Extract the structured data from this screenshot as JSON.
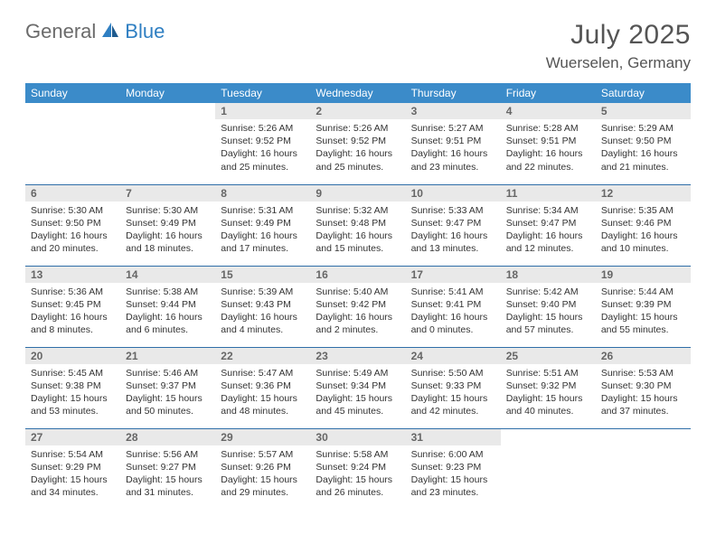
{
  "brand": {
    "part1": "General",
    "part2": "Blue"
  },
  "title": {
    "month": "July 2025",
    "location": "Wuerselen, Germany"
  },
  "colors": {
    "header_bg": "#3b8bc9",
    "header_text": "#ffffff",
    "row_sep": "#2f6ea8",
    "daynum_bg": "#e9e9e9",
    "daynum_text": "#666666",
    "body_text": "#333333",
    "brand_gray": "#6b6b6b",
    "brand_blue": "#2f7fc2"
  },
  "weekdays": [
    "Sunday",
    "Monday",
    "Tuesday",
    "Wednesday",
    "Thursday",
    "Friday",
    "Saturday"
  ],
  "weeks": [
    [
      null,
      null,
      {
        "n": "1",
        "sr": "5:26 AM",
        "ss": "9:52 PM",
        "dl": "16 hours and 25 minutes."
      },
      {
        "n": "2",
        "sr": "5:26 AM",
        "ss": "9:52 PM",
        "dl": "16 hours and 25 minutes."
      },
      {
        "n": "3",
        "sr": "5:27 AM",
        "ss": "9:51 PM",
        "dl": "16 hours and 23 minutes."
      },
      {
        "n": "4",
        "sr": "5:28 AM",
        "ss": "9:51 PM",
        "dl": "16 hours and 22 minutes."
      },
      {
        "n": "5",
        "sr": "5:29 AM",
        "ss": "9:50 PM",
        "dl": "16 hours and 21 minutes."
      }
    ],
    [
      {
        "n": "6",
        "sr": "5:30 AM",
        "ss": "9:50 PM",
        "dl": "16 hours and 20 minutes."
      },
      {
        "n": "7",
        "sr": "5:30 AM",
        "ss": "9:49 PM",
        "dl": "16 hours and 18 minutes."
      },
      {
        "n": "8",
        "sr": "5:31 AM",
        "ss": "9:49 PM",
        "dl": "16 hours and 17 minutes."
      },
      {
        "n": "9",
        "sr": "5:32 AM",
        "ss": "9:48 PM",
        "dl": "16 hours and 15 minutes."
      },
      {
        "n": "10",
        "sr": "5:33 AM",
        "ss": "9:47 PM",
        "dl": "16 hours and 13 minutes."
      },
      {
        "n": "11",
        "sr": "5:34 AM",
        "ss": "9:47 PM",
        "dl": "16 hours and 12 minutes."
      },
      {
        "n": "12",
        "sr": "5:35 AM",
        "ss": "9:46 PM",
        "dl": "16 hours and 10 minutes."
      }
    ],
    [
      {
        "n": "13",
        "sr": "5:36 AM",
        "ss": "9:45 PM",
        "dl": "16 hours and 8 minutes."
      },
      {
        "n": "14",
        "sr": "5:38 AM",
        "ss": "9:44 PM",
        "dl": "16 hours and 6 minutes."
      },
      {
        "n": "15",
        "sr": "5:39 AM",
        "ss": "9:43 PM",
        "dl": "16 hours and 4 minutes."
      },
      {
        "n": "16",
        "sr": "5:40 AM",
        "ss": "9:42 PM",
        "dl": "16 hours and 2 minutes."
      },
      {
        "n": "17",
        "sr": "5:41 AM",
        "ss": "9:41 PM",
        "dl": "16 hours and 0 minutes."
      },
      {
        "n": "18",
        "sr": "5:42 AM",
        "ss": "9:40 PM",
        "dl": "15 hours and 57 minutes."
      },
      {
        "n": "19",
        "sr": "5:44 AM",
        "ss": "9:39 PM",
        "dl": "15 hours and 55 minutes."
      }
    ],
    [
      {
        "n": "20",
        "sr": "5:45 AM",
        "ss": "9:38 PM",
        "dl": "15 hours and 53 minutes."
      },
      {
        "n": "21",
        "sr": "5:46 AM",
        "ss": "9:37 PM",
        "dl": "15 hours and 50 minutes."
      },
      {
        "n": "22",
        "sr": "5:47 AM",
        "ss": "9:36 PM",
        "dl": "15 hours and 48 minutes."
      },
      {
        "n": "23",
        "sr": "5:49 AM",
        "ss": "9:34 PM",
        "dl": "15 hours and 45 minutes."
      },
      {
        "n": "24",
        "sr": "5:50 AM",
        "ss": "9:33 PM",
        "dl": "15 hours and 42 minutes."
      },
      {
        "n": "25",
        "sr": "5:51 AM",
        "ss": "9:32 PM",
        "dl": "15 hours and 40 minutes."
      },
      {
        "n": "26",
        "sr": "5:53 AM",
        "ss": "9:30 PM",
        "dl": "15 hours and 37 minutes."
      }
    ],
    [
      {
        "n": "27",
        "sr": "5:54 AM",
        "ss": "9:29 PM",
        "dl": "15 hours and 34 minutes."
      },
      {
        "n": "28",
        "sr": "5:56 AM",
        "ss": "9:27 PM",
        "dl": "15 hours and 31 minutes."
      },
      {
        "n": "29",
        "sr": "5:57 AM",
        "ss": "9:26 PM",
        "dl": "15 hours and 29 minutes."
      },
      {
        "n": "30",
        "sr": "5:58 AM",
        "ss": "9:24 PM",
        "dl": "15 hours and 26 minutes."
      },
      {
        "n": "31",
        "sr": "6:00 AM",
        "ss": "9:23 PM",
        "dl": "15 hours and 23 minutes."
      },
      null,
      null
    ]
  ],
  "labels": {
    "sunrise": "Sunrise:",
    "sunset": "Sunset:",
    "daylight": "Daylight:"
  }
}
